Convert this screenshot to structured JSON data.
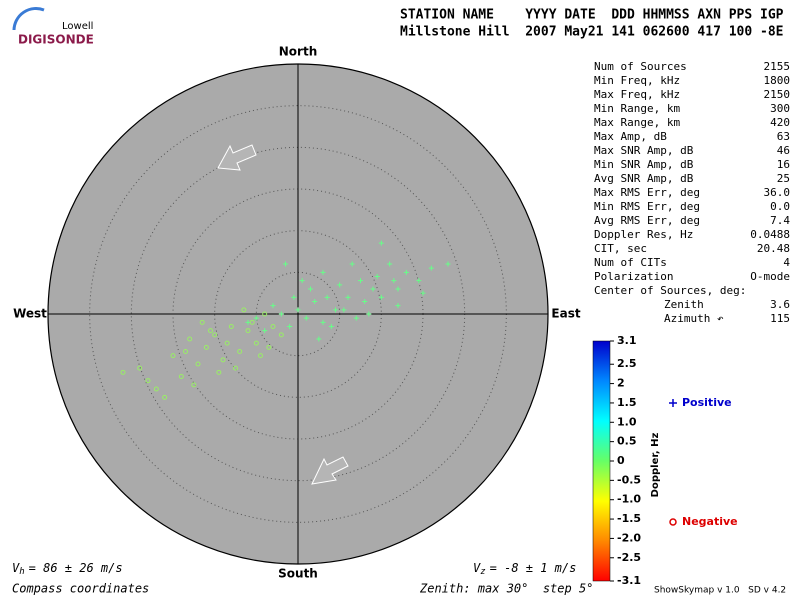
{
  "chart_data": {
    "type": "skymap",
    "logo": {
      "top": "Lowell",
      "bottom": "DIGISONDE"
    },
    "header": {
      "labels": "STATION NAME    YYYY DATE  DDD HHMMSS AXN PPS IGP",
      "values": "Millstone Hill  2007 May21 141 062600 417 100 -8E"
    },
    "directions": {
      "north": "North",
      "south": "South",
      "east": "East",
      "west": "West"
    },
    "xlim": [
      -30,
      30
    ],
    "ylim": [
      -30,
      30
    ],
    "rings": [
      5,
      10,
      15,
      20,
      25,
      30
    ],
    "series": [
      {
        "name": "Positive",
        "symbol": "+",
        "color": "#66ff88",
        "legend_color": "#0000cc",
        "x": [
          18,
          16,
          14.5,
          13,
          12,
          11,
          10,
          9.5,
          8,
          7.5,
          6,
          5,
          4.5,
          3.5,
          3,
          2,
          1.5,
          1,
          0,
          -0.5,
          -1,
          -2,
          -3,
          -4,
          -5,
          -6,
          10,
          12,
          15,
          8.5,
          6.5,
          4,
          2.5,
          9,
          11.5,
          -1.5,
          0.5,
          5.5,
          7,
          3
        ],
        "values": [
          6,
          5.5,
          4,
          5,
          3,
          6,
          2,
          4.5,
          1.5,
          4,
          2,
          3.5,
          0.5,
          2,
          -1,
          1.5,
          3,
          -0.5,
          0.5,
          2,
          -1.5,
          0,
          1,
          -2,
          -0.5,
          -1,
          8.5,
          1,
          2.5,
          0,
          6,
          -1.5,
          -3,
          3,
          4,
          6,
          4,
          0.5,
          -0.5,
          5
        ]
      },
      {
        "name": "Negative",
        "symbol": "o",
        "color": "#99ee66",
        "legend_color": "#dd0000",
        "x": [
          -21,
          -19,
          -17,
          -15,
          -14,
          -13,
          -12,
          -11,
          -10,
          -9,
          -8,
          -7,
          -6,
          -5,
          -4,
          -3,
          -2,
          -16,
          -18,
          -11.5,
          -9.5,
          -7.5,
          -13.5,
          -6.5,
          -4.5,
          -10.5,
          -8.5,
          -12.5,
          -3.5,
          -5.5
        ],
        "values": [
          -7,
          -6.5,
          -9,
          -5,
          -7.5,
          -3,
          -6,
          -4,
          -2.5,
          -5.5,
          -1.5,
          -4.5,
          -2,
          -3.5,
          0,
          -1.5,
          -2.5,
          -10,
          -8,
          -1,
          -7,
          -6.5,
          -4.5,
          0.5,
          -5,
          -2,
          -3.5,
          -8.5,
          -4,
          -1
        ]
      }
    ],
    "stats": [
      [
        "Num of Sources",
        "2155"
      ],
      [
        "Min Freq, kHz",
        "1800"
      ],
      [
        "Max Freq, kHz",
        "2150"
      ],
      [
        "Min Range, km",
        "300"
      ],
      [
        "Max Range, km",
        "420"
      ],
      [
        "Max Amp, dB",
        "63"
      ],
      [
        "Max SNR Amp, dB",
        "46"
      ],
      [
        "Min SNR Amp, dB",
        "16"
      ],
      [
        "Avg SNR Amp, dB",
        "25"
      ],
      [
        "Max RMS Err, deg",
        "36.0"
      ],
      [
        "Min RMS Err, deg",
        "0.0"
      ],
      [
        "Avg RMS Err, deg",
        "7.4"
      ],
      [
        "Doppler Res, Hz",
        "0.0488"
      ],
      [
        "CIT, sec",
        "20.48"
      ],
      [
        "Num of CITs",
        "4"
      ],
      [
        "Polarization",
        "O-mode"
      ],
      [
        "Center of Sources, deg:",
        ""
      ],
      [
        "Zenith",
        "3.6"
      ],
      [
        "Azimuth ↶",
        "115"
      ]
    ],
    "colorbar": {
      "label": "Doppler, Hz",
      "clim": [
        -3.1,
        3.1
      ],
      "colormap": [
        "#ff0000",
        "#ff8800",
        "#ffff00",
        "#66ff66",
        "#00ffff",
        "#0088ff",
        "#0000cc"
      ],
      "ticks": [
        3.1,
        2.5,
        2,
        1.5,
        {
          "value": 1,
          "label": "1.0"
        },
        0.5,
        0,
        -0.5,
        {
          "value": -1,
          "label": "-1.0"
        },
        -1.5,
        {
          "value": -2,
          "label": "-2.0"
        },
        -2.5,
        -3.1
      ]
    },
    "vh": {
      "symbol": "V",
      "sub": "h",
      "text": "= 86 ± 26 m/s"
    },
    "vz": {
      "symbol": "V",
      "sub": "z",
      "text": "= -8 ± 1 m/s"
    },
    "footer_left": "Compass coordinates",
    "footer_center": "Zenith: max 30°  step 5°",
    "footer_right": "ShowSkymap v 1.0   SD v 4.2"
  }
}
